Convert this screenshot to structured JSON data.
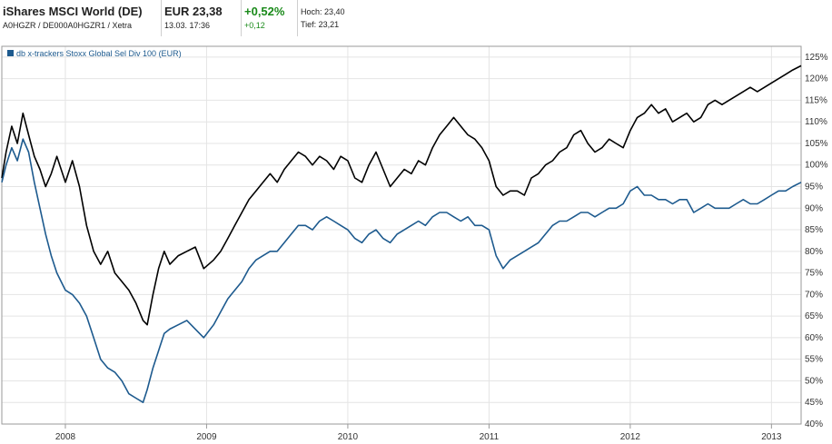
{
  "header": {
    "title": "iShares MSCI World (DE)",
    "ids": "A0HGZR / DE000A0HGZR1 / Xetra",
    "price": "EUR 23,38",
    "datetime": "13.03. 17:36",
    "change_pct": "+0,52%",
    "change_abs": "+0,12",
    "high": "Hoch: 23,40",
    "low": "Tief: 23,21"
  },
  "colors": {
    "main": "#000000",
    "compare": "#1d5a8e",
    "grid": "#e4e4e4",
    "positive": "#1a8a1a"
  },
  "chart_data": {
    "type": "line",
    "legend": "db x-trackers Stoxx Global Sel Div 100 (EUR)",
    "y_ticks": [
      "125%",
      "120%",
      "115%",
      "110%",
      "105%",
      "100%",
      "95%",
      "90%",
      "85%",
      "80%",
      "75%",
      "70%",
      "65%",
      "60%",
      "55%",
      "50%",
      "45%",
      "40%"
    ],
    "x_ticks": [
      {
        "label": "2008",
        "x": 2008.0
      },
      {
        "label": "2009",
        "x": 2009.0
      },
      {
        "label": "2010",
        "x": 2010.0
      },
      {
        "label": "2011",
        "x": 2011.0
      },
      {
        "label": "2012",
        "x": 2012.0
      },
      {
        "label": "2013",
        "x": 2013.0
      }
    ],
    "xlim": [
      2007.55,
      2013.21
    ],
    "ylim": [
      40,
      127.5
    ],
    "grid": true,
    "series": [
      {
        "color": "#000000",
        "points": [
          [
            2007.55,
            97
          ],
          [
            2007.58,
            103
          ],
          [
            2007.62,
            109
          ],
          [
            2007.66,
            105
          ],
          [
            2007.7,
            112
          ],
          [
            2007.74,
            107
          ],
          [
            2007.78,
            102
          ],
          [
            2007.82,
            99
          ],
          [
            2007.86,
            95
          ],
          [
            2007.9,
            98
          ],
          [
            2007.94,
            102
          ],
          [
            2008.0,
            96
          ],
          [
            2008.05,
            101
          ],
          [
            2008.1,
            95
          ],
          [
            2008.15,
            86
          ],
          [
            2008.2,
            80
          ],
          [
            2008.25,
            77
          ],
          [
            2008.3,
            80
          ],
          [
            2008.35,
            75
          ],
          [
            2008.4,
            73
          ],
          [
            2008.45,
            71
          ],
          [
            2008.5,
            68
          ],
          [
            2008.55,
            64
          ],
          [
            2008.58,
            63
          ],
          [
            2008.62,
            70
          ],
          [
            2008.66,
            76
          ],
          [
            2008.7,
            80
          ],
          [
            2008.74,
            77
          ],
          [
            2008.8,
            79
          ],
          [
            2008.86,
            80
          ],
          [
            2008.92,
            81
          ],
          [
            2008.98,
            76
          ],
          [
            2009.05,
            78
          ],
          [
            2009.1,
            80
          ],
          [
            2009.15,
            83
          ],
          [
            2009.2,
            86
          ],
          [
            2009.25,
            89
          ],
          [
            2009.3,
            92
          ],
          [
            2009.35,
            94
          ],
          [
            2009.4,
            96
          ],
          [
            2009.45,
            98
          ],
          [
            2009.5,
            96
          ],
          [
            2009.55,
            99
          ],
          [
            2009.6,
            101
          ],
          [
            2009.65,
            103
          ],
          [
            2009.7,
            102
          ],
          [
            2009.75,
            100
          ],
          [
            2009.8,
            102
          ],
          [
            2009.85,
            101
          ],
          [
            2009.9,
            99
          ],
          [
            2009.95,
            102
          ],
          [
            2010.0,
            101
          ],
          [
            2010.05,
            97
          ],
          [
            2010.1,
            96
          ],
          [
            2010.15,
            100
          ],
          [
            2010.2,
            103
          ],
          [
            2010.25,
            99
          ],
          [
            2010.3,
            95
          ],
          [
            2010.35,
            97
          ],
          [
            2010.4,
            99
          ],
          [
            2010.45,
            98
          ],
          [
            2010.5,
            101
          ],
          [
            2010.55,
            100
          ],
          [
            2010.6,
            104
          ],
          [
            2010.65,
            107
          ],
          [
            2010.7,
            109
          ],
          [
            2010.75,
            111
          ],
          [
            2010.8,
            109
          ],
          [
            2010.85,
            107
          ],
          [
            2010.9,
            106
          ],
          [
            2010.95,
            104
          ],
          [
            2011.0,
            101
          ],
          [
            2011.05,
            95
          ],
          [
            2011.1,
            93
          ],
          [
            2011.15,
            94
          ],
          [
            2011.2,
            94
          ],
          [
            2011.25,
            93
          ],
          [
            2011.3,
            97
          ],
          [
            2011.35,
            98
          ],
          [
            2011.4,
            100
          ],
          [
            2011.45,
            101
          ],
          [
            2011.5,
            103
          ],
          [
            2011.55,
            104
          ],
          [
            2011.6,
            107
          ],
          [
            2011.65,
            108
          ],
          [
            2011.7,
            105
          ],
          [
            2011.75,
            103
          ],
          [
            2011.8,
            104
          ],
          [
            2011.85,
            106
          ],
          [
            2011.9,
            105
          ],
          [
            2011.95,
            104
          ],
          [
            2012.0,
            108
          ],
          [
            2012.05,
            111
          ],
          [
            2012.1,
            112
          ],
          [
            2012.15,
            114
          ],
          [
            2012.2,
            112
          ],
          [
            2012.25,
            113
          ],
          [
            2012.3,
            110
          ],
          [
            2012.35,
            111
          ],
          [
            2012.4,
            112
          ],
          [
            2012.45,
            110
          ],
          [
            2012.5,
            111
          ],
          [
            2012.55,
            114
          ],
          [
            2012.6,
            115
          ],
          [
            2012.65,
            114
          ],
          [
            2012.7,
            115
          ],
          [
            2012.75,
            116
          ],
          [
            2012.8,
            117
          ],
          [
            2012.85,
            118
          ],
          [
            2012.9,
            117
          ],
          [
            2012.95,
            118
          ],
          [
            2013.0,
            119
          ],
          [
            2013.05,
            120
          ],
          [
            2013.1,
            121
          ],
          [
            2013.15,
            122
          ],
          [
            2013.21,
            123
          ]
        ]
      },
      {
        "color": "#1d5a8e",
        "points": [
          [
            2007.55,
            96
          ],
          [
            2007.58,
            100
          ],
          [
            2007.62,
            104
          ],
          [
            2007.66,
            101
          ],
          [
            2007.7,
            106
          ],
          [
            2007.74,
            103
          ],
          [
            2007.78,
            96
          ],
          [
            2007.82,
            90
          ],
          [
            2007.86,
            84
          ],
          [
            2007.9,
            79
          ],
          [
            2007.94,
            75
          ],
          [
            2008.0,
            71
          ],
          [
            2008.05,
            70
          ],
          [
            2008.1,
            68
          ],
          [
            2008.15,
            65
          ],
          [
            2008.2,
            60
          ],
          [
            2008.25,
            55
          ],
          [
            2008.3,
            53
          ],
          [
            2008.35,
            52
          ],
          [
            2008.4,
            50
          ],
          [
            2008.45,
            47
          ],
          [
            2008.5,
            46
          ],
          [
            2008.55,
            45
          ],
          [
            2008.58,
            48
          ],
          [
            2008.62,
            53
          ],
          [
            2008.66,
            57
          ],
          [
            2008.7,
            61
          ],
          [
            2008.74,
            62
          ],
          [
            2008.8,
            63
          ],
          [
            2008.86,
            64
          ],
          [
            2008.92,
            62
          ],
          [
            2008.98,
            60
          ],
          [
            2009.05,
            63
          ],
          [
            2009.1,
            66
          ],
          [
            2009.15,
            69
          ],
          [
            2009.2,
            71
          ],
          [
            2009.25,
            73
          ],
          [
            2009.3,
            76
          ],
          [
            2009.35,
            78
          ],
          [
            2009.4,
            79
          ],
          [
            2009.45,
            80
          ],
          [
            2009.5,
            80
          ],
          [
            2009.55,
            82
          ],
          [
            2009.6,
            84
          ],
          [
            2009.65,
            86
          ],
          [
            2009.7,
            86
          ],
          [
            2009.75,
            85
          ],
          [
            2009.8,
            87
          ],
          [
            2009.85,
            88
          ],
          [
            2009.9,
            87
          ],
          [
            2009.95,
            86
          ],
          [
            2010.0,
            85
          ],
          [
            2010.05,
            83
          ],
          [
            2010.1,
            82
          ],
          [
            2010.15,
            84
          ],
          [
            2010.2,
            85
          ],
          [
            2010.25,
            83
          ],
          [
            2010.3,
            82
          ],
          [
            2010.35,
            84
          ],
          [
            2010.4,
            85
          ],
          [
            2010.45,
            86
          ],
          [
            2010.5,
            87
          ],
          [
            2010.55,
            86
          ],
          [
            2010.6,
            88
          ],
          [
            2010.65,
            89
          ],
          [
            2010.7,
            89
          ],
          [
            2010.75,
            88
          ],
          [
            2010.8,
            87
          ],
          [
            2010.85,
            88
          ],
          [
            2010.9,
            86
          ],
          [
            2010.95,
            86
          ],
          [
            2011.0,
            85
          ],
          [
            2011.05,
            79
          ],
          [
            2011.1,
            76
          ],
          [
            2011.15,
            78
          ],
          [
            2011.2,
            79
          ],
          [
            2011.25,
            80
          ],
          [
            2011.3,
            81
          ],
          [
            2011.35,
            82
          ],
          [
            2011.4,
            84
          ],
          [
            2011.45,
            86
          ],
          [
            2011.5,
            87
          ],
          [
            2011.55,
            87
          ],
          [
            2011.6,
            88
          ],
          [
            2011.65,
            89
          ],
          [
            2011.7,
            89
          ],
          [
            2011.75,
            88
          ],
          [
            2011.8,
            89
          ],
          [
            2011.85,
            90
          ],
          [
            2011.9,
            90
          ],
          [
            2011.95,
            91
          ],
          [
            2012.0,
            94
          ],
          [
            2012.05,
            95
          ],
          [
            2012.1,
            93
          ],
          [
            2012.15,
            93
          ],
          [
            2012.2,
            92
          ],
          [
            2012.25,
            92
          ],
          [
            2012.3,
            91
          ],
          [
            2012.35,
            92
          ],
          [
            2012.4,
            92
          ],
          [
            2012.45,
            89
          ],
          [
            2012.5,
            90
          ],
          [
            2012.55,
            91
          ],
          [
            2012.6,
            90
          ],
          [
            2012.65,
            90
          ],
          [
            2012.7,
            90
          ],
          [
            2012.75,
            91
          ],
          [
            2012.8,
            92
          ],
          [
            2012.85,
            91
          ],
          [
            2012.9,
            91
          ],
          [
            2012.95,
            92
          ],
          [
            2013.0,
            93
          ],
          [
            2013.05,
            94
          ],
          [
            2013.1,
            94
          ],
          [
            2013.15,
            95
          ],
          [
            2013.21,
            96
          ]
        ]
      }
    ]
  }
}
